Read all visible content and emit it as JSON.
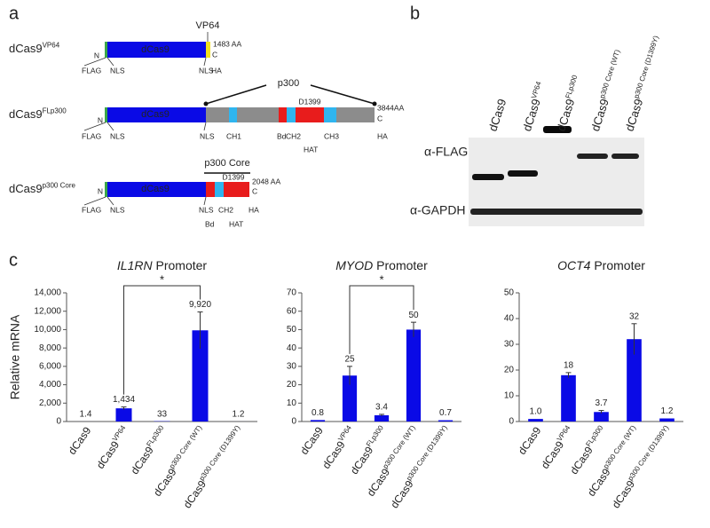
{
  "panel_a": {
    "label": "a",
    "constructs": [
      {
        "name": "dCas9",
        "sup": "VP64",
        "labels": [
          "N",
          "FLAG",
          "NLS",
          "dCas9",
          "NLS",
          "VP64",
          "1483 AA",
          "C",
          "HA"
        ]
      },
      {
        "name": "dCas9",
        "sup": "FLp300",
        "labels": [
          "N",
          "FLAG",
          "NLS",
          "dCas9",
          "p300",
          "D1399",
          "NLS",
          "CH1",
          "Bd",
          "CH2",
          "HAT",
          "CH3",
          "3844AA",
          "C",
          "HA"
        ]
      },
      {
        "name": "dCas9",
        "sup": "p300 Core",
        "labels": [
          "N",
          "FLAG",
          "NLS",
          "dCas9",
          "p300 Core",
          "D1399",
          "NLS",
          "Bd",
          "CH2",
          "HAT",
          "2048 AA",
          "C",
          "HA"
        ]
      }
    ]
  },
  "panel_b": {
    "label": "b",
    "lanes": [
      {
        "label": "dCas9",
        "sup": ""
      },
      {
        "label": "dCas9",
        "sup": "VP64"
      },
      {
        "label": "dCas9",
        "sup": "FLp300"
      },
      {
        "label": "dCas9",
        "sup": "p300 Core (WT)"
      },
      {
        "label": "dCas9",
        "sup": "p300 Core (D1399Y)"
      }
    ],
    "rows": [
      "α-FLAG",
      "α-GAPDH"
    ]
  },
  "panel_c": {
    "label": "c"
  },
  "chart_data": [
    {
      "type": "bar",
      "gene": "IL1RN",
      "title": "Promoter",
      "ylabel": "Relative mRNA",
      "color": "#0a0ae6",
      "categories": [
        {
          "label": "dCas9",
          "sup": ""
        },
        {
          "label": "dCas9",
          "sup": "VP64"
        },
        {
          "label": "dCas9",
          "sup": "FLp300"
        },
        {
          "label": "dCas9",
          "sup": "p300 Core (WT)"
        },
        {
          "label": "dCas9",
          "sup": "p300 Core (D1399Y)"
        }
      ],
      "values": [
        1.4,
        1434,
        33,
        9920,
        1.2
      ],
      "value_labels": [
        "1.4",
        "1,434",
        "33",
        "9,920",
        "1.2"
      ],
      "errors": [
        null,
        150,
        null,
        2000,
        null
      ],
      "ylim": [
        0,
        14000
      ],
      "yticks": [
        0,
        {
          "value": 2000,
          "label": "2,000"
        },
        {
          "value": 4000,
          "label": "4,000"
        },
        {
          "value": 6000,
          "label": "6,000"
        },
        {
          "value": 8000,
          "label": "8,000"
        },
        {
          "value": 10000,
          "label": "10,000"
        },
        {
          "value": 12000,
          "label": "12,000"
        },
        {
          "value": 14000,
          "label": "14,000"
        }
      ],
      "significance": {
        "label": "*",
        "categories": [
          1,
          3
        ]
      }
    },
    {
      "type": "bar",
      "gene": "MYOD",
      "title": "Promoter",
      "color": "#0a0ae6",
      "categories": [
        {
          "label": "dCas9",
          "sup": ""
        },
        {
          "label": "dCas9",
          "sup": "VP64"
        },
        {
          "label": "dCas9",
          "sup": "FLp300"
        },
        {
          "label": "dCas9",
          "sup": "p300 Core (WT)"
        },
        {
          "label": "dCas9",
          "sup": "p300 Core (D1399Y)"
        }
      ],
      "values": [
        0.8,
        25,
        3.4,
        50,
        0.7
      ],
      "errors": [
        null,
        5,
        0.5,
        4,
        null
      ],
      "ylim": [
        0,
        70
      ],
      "yticks": [
        0,
        10,
        20,
        30,
        40,
        50,
        60,
        70
      ],
      "significance": {
        "label": "*",
        "categories": [
          1,
          3
        ]
      }
    },
    {
      "type": "bar",
      "gene": "OCT4",
      "title": "Promoter",
      "color": "#0a0ae6",
      "categories": [
        {
          "label": "dCas9",
          "sup": ""
        },
        {
          "label": "dCas9",
          "sup": "VP64"
        },
        {
          "label": "dCas9",
          "sup": "FLp300"
        },
        {
          "label": "dCas9",
          "sup": "p300 Core (WT)"
        },
        {
          "label": "dCas9",
          "sup": "p300 Core (D1399Y)"
        }
      ],
      "values": [
        1.0,
        18,
        3.7,
        32,
        1.2
      ],
      "value_labels": [
        "1.0",
        "18",
        "3.7",
        "32",
        "1.2"
      ],
      "errors": [
        null,
        1,
        0.6,
        6,
        null
      ],
      "ylim": [
        0,
        50
      ],
      "yticks": [
        0,
        10,
        20,
        30,
        40,
        50
      ]
    }
  ]
}
